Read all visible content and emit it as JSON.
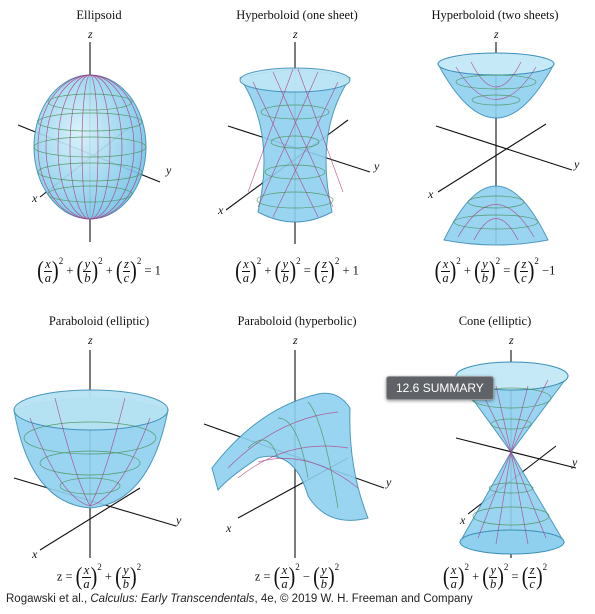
{
  "panels": [
    {
      "title": "Ellipsoid"
    },
    {
      "title": "Hyperboloid (one sheet)"
    },
    {
      "title": "Hyperboloid (two sheets)"
    },
    {
      "title": "Paraboloid (elliptic)"
    },
    {
      "title": "Paraboloid (hyperbolic)"
    },
    {
      "title": "Cone (elliptic)"
    }
  ],
  "axes": {
    "x": "x",
    "y": "y",
    "z": "z"
  },
  "equations": {
    "ellipsoid_rhs": "= 1",
    "hyp1_rhs": "+ 1",
    "hyp2_rhs": "−1",
    "z_lhs": "z =",
    "plus": "+",
    "minus": "−",
    "equals": "=",
    "vars": {
      "x": "x",
      "y": "y",
      "z": "z",
      "a": "a",
      "b": "b",
      "c": "c"
    },
    "exp": "2"
  },
  "badge": "12.6 SUMMARY",
  "caption": {
    "prefix": "Rogawski et al., ",
    "book": "Calculus: Early Transcendentals",
    "suffix": ", 4e, © 2019 W. H. Freeman and Company"
  },
  "colors": {
    "surface": "#8fd0ef",
    "grid_red": "#b0337a",
    "grid_green": "#3f8d4a",
    "axis": "#111111"
  }
}
